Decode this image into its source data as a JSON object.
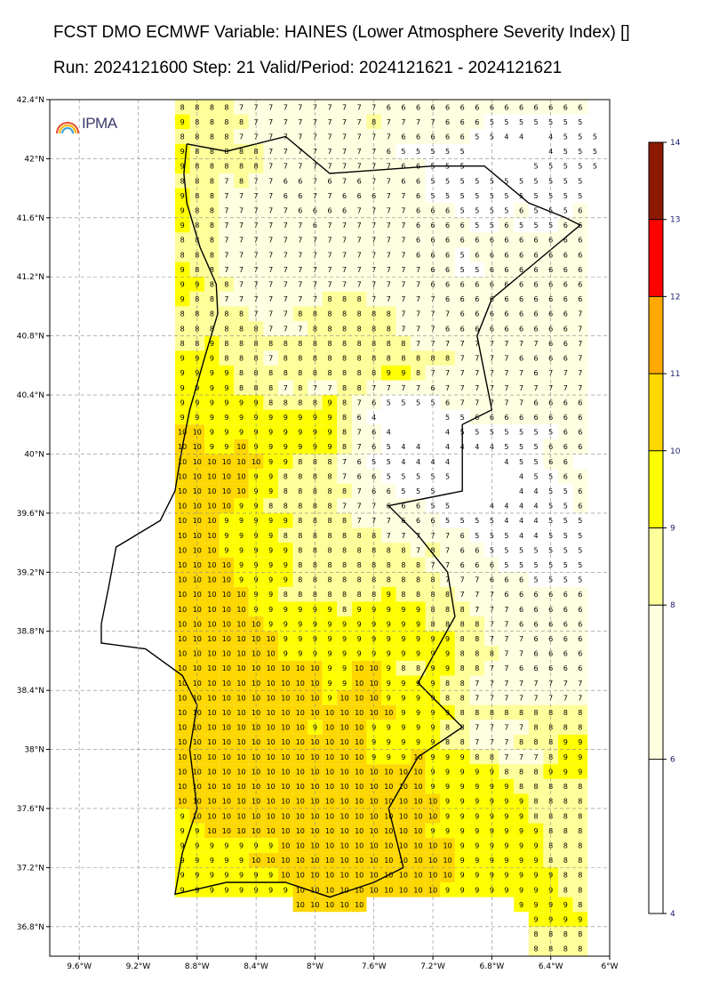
{
  "header": {
    "title_line1": "FCST DMO ECMWF Variable: HAINES (Lower Atmosphere Severity Index) []",
    "title_line2": "Run: 2024121600 Step: 21 Valid/Period: 2024121621 - 2024121621"
  },
  "logo": {
    "text": "IPMA"
  },
  "axes": {
    "lat_labels": [
      "42.4°N",
      "42°N",
      "41.6°N",
      "41.2°N",
      "40.8°N",
      "40.4°N",
      "40°N",
      "39.6°N",
      "39.2°N",
      "38.8°N",
      "38.4°N",
      "38°N",
      "37.6°N",
      "37.2°N",
      "36.8°N"
    ],
    "lat_values": [
      42.4,
      42.0,
      41.6,
      41.2,
      40.8,
      40.4,
      40.0,
      39.6,
      39.2,
      38.8,
      38.4,
      38.0,
      37.6,
      37.2,
      36.8
    ],
    "lon_labels": [
      "9.6°W",
      "9.2°W",
      "8.8°W",
      "8.4°W",
      "8°W",
      "7.6°W",
      "7.2°W",
      "6.8°W",
      "6.4°W",
      "6°W"
    ],
    "lon_values": [
      -9.6,
      -9.2,
      -8.8,
      -8.4,
      -8.0,
      -7.6,
      -7.2,
      -6.8,
      -6.4,
      -6.0
    ],
    "lon_range": [
      -9.8,
      -6.0
    ],
    "lat_range": [
      36.6,
      42.4
    ],
    "grid": true
  },
  "colorbar": {
    "labels": [
      "14",
      "13",
      "12",
      "11",
      "10",
      "9",
      "8",
      "6",
      "4"
    ],
    "bands": [
      {
        "from": 4,
        "to": 6,
        "color": "#ffffff"
      },
      {
        "from": 6,
        "to": 8,
        "color": "#fefee0"
      },
      {
        "from": 8,
        "to": 9,
        "color": "#fefe9a"
      },
      {
        "from": 9,
        "to": 10,
        "color": "#fefe00"
      },
      {
        "from": 10,
        "to": 11,
        "color": "#fed700"
      },
      {
        "from": 11,
        "to": 12,
        "color": "#fea800"
      },
      {
        "from": 12,
        "to": 13,
        "color": "#fe0000"
      },
      {
        "from": 13,
        "to": 14,
        "color": "#8b1a00"
      }
    ]
  },
  "grid_field": {
    "lon_start": -8.9,
    "lat_start": 42.35,
    "step": 0.1,
    "rows": [
      "8 8 8 8 7 7 7 7 7 7 7 7 7 7 6 6 6 6 6 6 6 6 6 6 6 6 6 6",
      "9 8 8 8 8 7 7 7 7 7 7 7 7 8 7 7 7 7 6 6 6 5 5 5 5 5 5 5",
      "8 8 8 8 7 7 7 7 7 7 7 7 7 7 7 6 6 6 6 6 5 5 4 4 - 4 5 5 5",
      "9 8 8 8 8 8 7 7 7 7 7 7 7 7 6 5 5 5 5 5 - - - - - 4 5 5 5",
      "9 8 8 8 8 8 7 7 7 7 7 7 7 7 7 6 6 5 5 5 - - - - 5 5 5 5 5",
      "8 8 8 7 8 7 7 6 6 7 6 7 6 7 7 6 6 5 5 5 5 5 5 5 5 5 5 5",
      "9 8 8 7 7 7 7 6 6 7 7 6 6 6 7 7 6 5 5 5 5 5 5 5 5 5 5 5",
      "9 8 8 7 7 7 7 7 6 6 6 6 7 7 7 7 6 6 6 5 5 5 5 6 5 5 5 6",
      "9 8 8 7 7 7 7 7 7 6 7 7 7 7 7 7 6 6 6 6 5 5 6 5 5 5 6 6",
      "8 8 8 7 7 7 7 7 7 7 7 7 7 7 7 7 6 6 6 6 6 6 6 6 6 6 6 6",
      "8 8 8 7 7 7 7 7 7 7 7 7 7 7 7 7 6 6 6 5 6 6 6 6 6 6 6 6",
      "9 8 8 7 7 7 7 7 7 7 7 7 7 7 7 7 7 6 6 5 5 6 6 6 6 6 6 6",
      "9 9 8 8 7 7 7 7 7 7 7 7 7 7 7 7 7 6 6 6 6 6 6 6 6 6 6 6",
      "9 8 8 7 7 7 7 7 7 7 8 8 8 7 7 7 7 7 6 6 6 6 6 6 6 6 6 6",
      "8 8 8 8 8 7 7 7 8 8 8 8 8 8 8 7 7 7 7 6 6 6 6 6 6 6 6 7",
      "8 8 8 8 8 8 7 7 7 8 8 8 8 8 8 7 7 7 6 6 6 6 6 6 6 6 6 7",
      "8 8 9 8 8 8 8 8 8 8 8 8 8 8 8 8 7 7 7 7 7 7 7 7 7 6 6 7",
      "9 9 9 8 8 8 7 8 8 8 8 8 8 8 8 8 8 8 8 7 7 7 7 6 6 6 6 7",
      "9 9 9 9 8 8 8 8 8 8 8 8 8 8 9 9 8 7 7 7 7 7 7 7 6 7 7 7",
      "9 9 9 9 8 8 8 7 8 7 7 8 8 7 7 7 7 6 7 7 7 7 7 7 7 7 7 7",
      "9 9 9 9 9 9 8 8 8 8 9 8 7 6 5 5 5 5 6 7 7 7 7 7 6 6 6 6",
      "9 9 9 9 9 9 9 9 9 9 9 8 6 4 - - - - 5 5 6 6 6 6 6 6 6 6",
      "10 10 9 9 9 9 9 9 9 9 9 8 7 6 4 - - - 4 5 5 5 5 5 5 5 6 6",
      "10 10 9 9 10 9 9 9 9 9 9 8 7 6 5 4 4 - 4 4 4 4 5 5 5 6 6 6",
      "10 10 10 10 10 10 9 9 8 8 8 7 6 5 5 4 4 4 4 - - - 4 5 5 6 6",
      "10 10 10 10 10 9 9 8 8 8 8 7 6 6 5 5 5 5 5 - - - - 4 5 5 6 6",
      "10 10 10 10 10 9 9 8 8 8 8 8 7 6 6 5 5 5 - - - - - 4 4 5 5 6",
      "10 10 10 10 9 9 8 8 8 8 8 7 7 7 6 6 6 5 5 - - 4 4 4 4 5 5 6",
      "10 10 10 9 9 9 9 9 8 8 8 8 7 7 7 6 6 6 5 5 5 5 4 4 4 5 5 5",
      "10 10 10 9 9 9 9 8 8 8 8 8 8 8 7 7 7 7 7 6 5 5 5 4 4 5 5 5",
      "10 10 10 9 9 9 9 9 8 8 8 8 8 8 8 8 7 8 7 6 6 5 5 5 5 5 5 5",
      "10 10 10 10 9 9 9 9 8 8 8 8 8 8 8 8 8 7 7 6 6 6 5 5 5 5 5 5",
      "10 10 10 10 9 9 9 9 8 8 8 8 8 8 8 8 8 8 7 7 7 6 6 6 5 5 5 5",
      "10 10 10 10 10 9 9 8 8 8 8 8 8 8 9 8 8 8 8 7 7 7 6 6 6 6 6 6",
      "10 10 10 10 10 9 9 9 9 9 9 8 9 9 9 9 9 8 8 8 7 7 7 6 6 6 6 6",
      "10 10 10 10 10 10 9 9 9 9 9 9 9 9 9 9 9 8 8 8 8 7 7 6 6 6 6 6",
      "10 10 10 10 10 10 10 9 9 9 9 9 9 9 9 9 9 9 9 8 8 7 7 7 6 6 6 6",
      "10 10 10 10 10 10 10 9 9 9 9 9 9 9 9 9 9 9 9 8 8 8 7 7 6 6 6 6",
      "10 10 10 10 10 10 10 10 10 10 9 9 10 10 9 8 8 9 9 8 8 7 7 6 6 6 6 6",
      "10 10 10 10 10 10 10 10 10 10 9 9 10 10 9 9 9 9 8 8 7 7 7 7 7 7 7 7",
      "10 10 10 10 10 10 10 10 10 10 9 10 10 10 9 9 9 9 8 8 7 7 7 7 7 7 7 7",
      "10 10 10 10 10 10 10 10 10 10 10 10 10 10 10 9 9 9 9 8 8 8 8 8 8 8 8 8",
      "10 10 10 10 10 10 10 10 10 9 10 10 10 9 9 9 9 9 8 8 7 7 7 7 8 8 8 8",
      "10 10 10 10 10 10 10 10 10 10 10 10 10 9 9 9 9 9 8 8 7 7 7 8 8 8 9 9",
      "10 10 10 10 10 10 10 10 10 10 10 10 10 9 9 9 10 9 9 9 8 8 7 7 7 8 9 9",
      "10 10 10 10 10 10 10 10 10 10 10 10 10 10 10 10 10 9 9 9 9 9 8 8 8 9 9 9",
      "10 10 10 10 10 10 10 10 10 10 10 10 10 10 10 10 10 9 9 9 9 9 9 8 8 8 8 8",
      "10 10 10 10 10 10 10 10 10 10 10 10 10 10 10 10 10 10 9 9 9 9 9 9 8 8 8 8",
      "9 10 10 10 10 10 10 10 10 10 10 10 10 10 10 10 10 10 9 9 9 9 9 9 8 8 8 8",
      "9 9 10 10 10 10 10 10 10 10 10 10 10 10 10 10 10 9 9 9 9 9 9 9 9 8 8 8",
      "9 9 9 9 9 9 9 10 10 10 10 10 10 10 10 10 10 10 10 9 9 9 9 9 9 8 8 8",
      "9 9 9 9 9 10 10 10 10 10 10 10 10 10 10 10 10 10 10 9 9 9 9 9 9 8 8 8",
      "9 9 9 9 9 9 9 10 10 10 10 10 10 10 10 10 10 10 10 9 9 9 9 9 9 9 8 8",
      "9 9 9 9 9 9 9 9 10 10 10 10 10 10 10 10 10 10 9 9 9 9 9 9 9 9 8 8",
      "- - - - - - - - 10 10 10 10 10 - - - - - - - - - - 9 9 9 9 8",
      "- - - - - - - - - - - - - - - - - - - - - - - - 9 9 9 9",
      "- - - - - - - - - - - - - - - - - - - - - - - - 8 8 8 8",
      "- - - - - - - - - - - - - - - - - - - - - - - - 8 8 8 8",
      "- - - - - - - - - - - - - - - - - - - - - - - 9 9 9 9 -"
    ]
  }
}
